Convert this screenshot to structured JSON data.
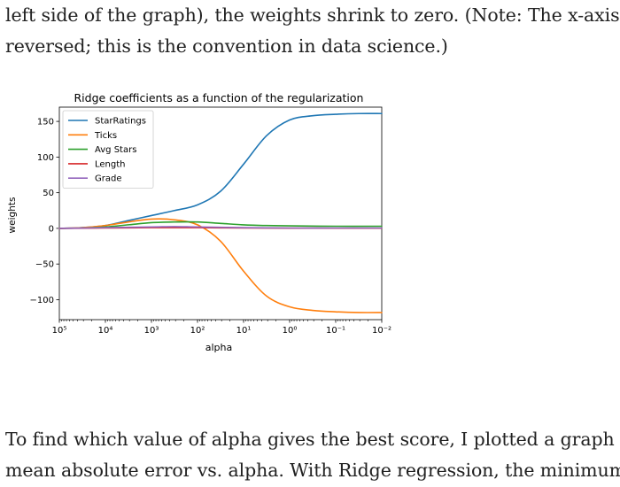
{
  "top_paragraph": {
    "lines": [
      "left side of the graph), the weights shrink to zero. (Note: The x-axis is",
      "reversed; this is the convention in data science.)"
    ]
  },
  "bottom_paragraph": {
    "lines": [
      "To find which value of alpha gives the best score, I plotted a graph of",
      "mean absolute error vs. alpha. With Ridge regression, the minimum in"
    ]
  },
  "chart_data": {
    "type": "line",
    "title": "Ridge coefficients as a function of the regularization",
    "xlabel": "alpha",
    "ylabel": "weights",
    "x_scale": "log",
    "x_reversed": true,
    "xlim": [
      100000,
      0.01
    ],
    "ylim": [
      -128,
      170
    ],
    "grid": false,
    "legend_position": "upper-left",
    "x_ticks": [
      {
        "value": 100000,
        "label": "10⁵"
      },
      {
        "value": 10000,
        "label": "10⁴"
      },
      {
        "value": 1000,
        "label": "10³"
      },
      {
        "value": 100,
        "label": "10²"
      },
      {
        "value": 10,
        "label": "10¹"
      },
      {
        "value": 1,
        "label": "10⁰"
      },
      {
        "value": 0.1,
        "label": "10⁻¹"
      },
      {
        "value": 0.01,
        "label": "10⁻²"
      }
    ],
    "y_ticks": [
      {
        "value": 150,
        "label": "150"
      },
      {
        "value": 100,
        "label": "100"
      },
      {
        "value": 50,
        "label": "50"
      },
      {
        "value": 0,
        "label": "0"
      },
      {
        "value": -50,
        "label": "−50"
      },
      {
        "value": -100,
        "label": "−100"
      }
    ],
    "series": [
      {
        "name": "StarRatings",
        "color": "#1f77b4",
        "points": [
          [
            100000,
            0
          ],
          [
            31623,
            1
          ],
          [
            10000,
            4
          ],
          [
            3162,
            11
          ],
          [
            1000,
            18
          ],
          [
            316,
            25
          ],
          [
            100,
            33
          ],
          [
            31.6,
            52
          ],
          [
            10,
            90
          ],
          [
            3.16,
            130
          ],
          [
            1,
            152
          ],
          [
            0.316,
            158
          ],
          [
            0.1,
            160
          ],
          [
            0.0316,
            161
          ],
          [
            0.01,
            161
          ]
        ]
      },
      {
        "name": "Ticks",
        "color": "#ff7f0e",
        "points": [
          [
            100000,
            0
          ],
          [
            31623,
            1
          ],
          [
            10000,
            4
          ],
          [
            3162,
            9
          ],
          [
            1000,
            13
          ],
          [
            316,
            12
          ],
          [
            100,
            5
          ],
          [
            31.6,
            -18
          ],
          [
            10,
            -60
          ],
          [
            3.16,
            -95
          ],
          [
            1,
            -110
          ],
          [
            0.316,
            -115
          ],
          [
            0.1,
            -117
          ],
          [
            0.0316,
            -118
          ],
          [
            0.01,
            -118
          ]
        ]
      },
      {
        "name": "Avg Stars",
        "color": "#2ca02c",
        "points": [
          [
            100000,
            0
          ],
          [
            31623,
            0.5
          ],
          [
            10000,
            2
          ],
          [
            3162,
            5
          ],
          [
            1000,
            8
          ],
          [
            316,
            9
          ],
          [
            100,
            9
          ],
          [
            31.6,
            7
          ],
          [
            10,
            5
          ],
          [
            3.16,
            4
          ],
          [
            1,
            3.5
          ],
          [
            0.1,
            3
          ],
          [
            0.01,
            3
          ]
        ]
      },
      {
        "name": "Length",
        "color": "#d62728",
        "points": [
          [
            100000,
            0
          ],
          [
            10000,
            0.5
          ],
          [
            1000,
            1
          ],
          [
            100,
            1
          ],
          [
            10,
            0.5
          ],
          [
            1,
            0.3
          ],
          [
            0.1,
            0.2
          ],
          [
            0.01,
            0.2
          ]
        ]
      },
      {
        "name": "Grade",
        "color": "#9467bd",
        "points": [
          [
            100000,
            0
          ],
          [
            10000,
            1
          ],
          [
            1000,
            2
          ],
          [
            316,
            2.5
          ],
          [
            100,
            2
          ],
          [
            10,
            1
          ],
          [
            1,
            0.5
          ],
          [
            0.1,
            0.5
          ],
          [
            0.01,
            0.5
          ]
        ]
      }
    ]
  }
}
